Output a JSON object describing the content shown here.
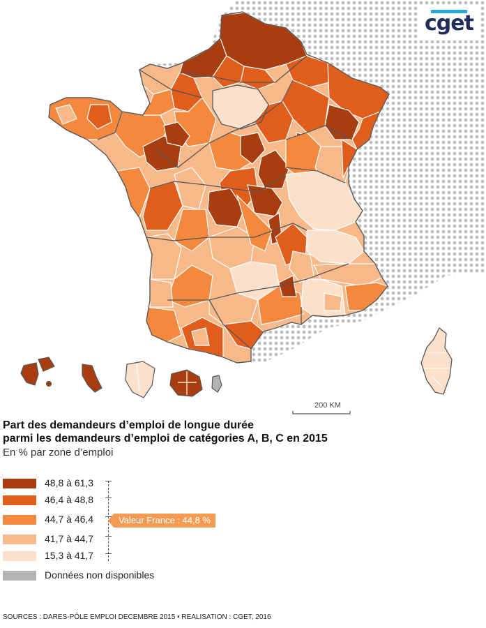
{
  "title_line1": "Part des demandeurs d’emploi de longue durée",
  "title_line2": "parmi les demandeurs d’emploi de catégories A, B, C en 2015",
  "subtitle": "En % par zone d’emploi",
  "logo_text": "cget",
  "scale_label": "200 KM",
  "legend": [
    {
      "label": "48,8 à 61,3",
      "color": "#a83e10"
    },
    {
      "label": "46,4 à 48,8",
      "color": "#e05d1c"
    },
    {
      "label": "44,7 à 46,4",
      "color": "#f4893d"
    },
    {
      "label": "41,7 à 44,7",
      "color": "#f8b98a"
    },
    {
      "label": "15,3 à 41,7",
      "color": "#fbe0cb"
    },
    {
      "label": "Données non disponibles",
      "color": "#b3b3b3"
    }
  ],
  "reference_value": "Valeur France : 44,8 %",
  "sources": "SOURCES : DARES-PÔLE EMPLOI DECEMBRE 2015 • REALISATION : CGET, 2016",
  "colors": {
    "background_dots": "#bdbdbd",
    "boundary": "#ffffff",
    "region_boundary": "#555555",
    "logo_bar": "#29a8e0",
    "callout": "#f39b52"
  }
}
